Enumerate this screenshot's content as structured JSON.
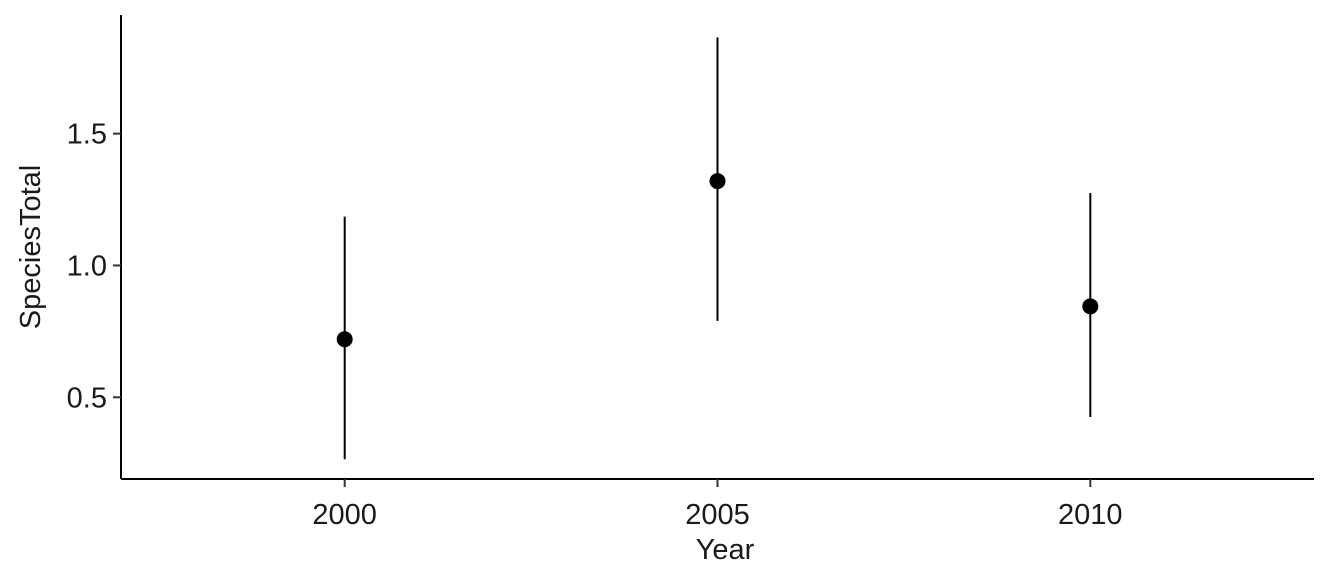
{
  "chart_data": {
    "type": "scatter",
    "title": "",
    "xlabel": "Year",
    "ylabel": "SpeciesTotal",
    "x": [
      2000,
      2005,
      2010
    ],
    "xlim": [
      1997,
      2013
    ],
    "ylim": [
      0.19,
      1.95
    ],
    "x_ticks": [
      2000,
      2005,
      2010
    ],
    "y_ticks": [
      0.5,
      1.0,
      1.5
    ],
    "x_tick_labels": [
      "2000",
      "2005",
      "2010"
    ],
    "y_tick_labels": [
      "0.5",
      "1.0",
      "1.5"
    ],
    "grid": false,
    "legend": "none",
    "series": [
      {
        "values": [
          0.72,
          1.32,
          0.845
        ],
        "lower": [
          0.265,
          0.79,
          0.425
        ],
        "upper": [
          1.185,
          1.865,
          1.275
        ],
        "color": "#000000"
      }
    ]
  }
}
